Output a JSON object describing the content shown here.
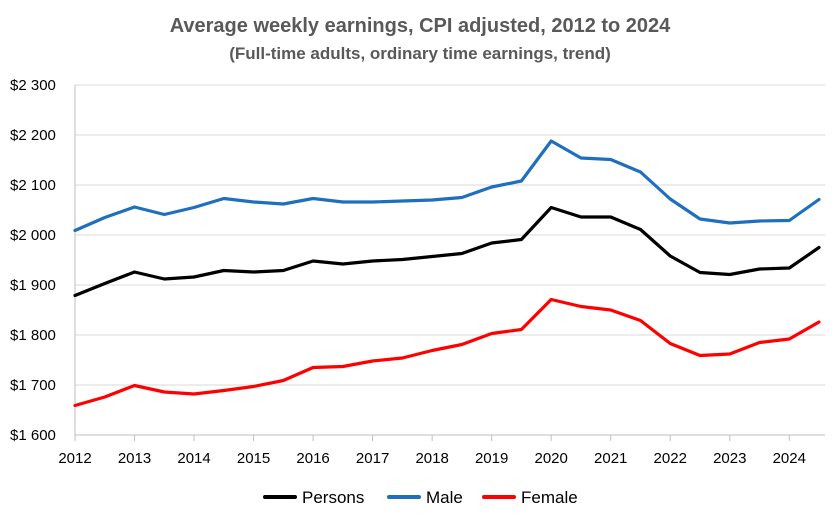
{
  "chart_data": {
    "type": "line",
    "title": "Average weekly earnings, CPI adjusted, 2012 to 2024",
    "subtitle": "(Full-time adults, ordinary time earnings, trend)",
    "xlabel": "",
    "ylabel": "",
    "ylim": [
      1600,
      2300
    ],
    "y_ticks": [
      1600,
      1700,
      1800,
      1900,
      2000,
      2100,
      2200,
      2300
    ],
    "y_tick_labels": [
      "$1 600",
      "$1 700",
      "$1 800",
      "$1 900",
      "$2 000",
      "$2 100",
      "$2 200",
      "$2 300"
    ],
    "x_tick_labels": [
      "2012",
      "2013",
      "2014",
      "2015",
      "2016",
      "2017",
      "2018",
      "2019",
      "2020",
      "2021",
      "2022",
      "2023",
      "2024"
    ],
    "x": [
      2012.0,
      2012.5,
      2013.0,
      2013.5,
      2014.0,
      2014.5,
      2015.0,
      2015.5,
      2016.0,
      2016.5,
      2017.0,
      2017.5,
      2018.0,
      2018.5,
      2019.0,
      2019.5,
      2020.0,
      2020.5,
      2021.0,
      2021.5,
      2022.0,
      2022.5,
      2023.0,
      2023.5,
      2024.0,
      2024.5
    ],
    "grid": true,
    "legend_position": "bottom",
    "series": [
      {
        "name": "Persons",
        "color": "#000000",
        "values": [
          1879,
          1903,
          1926,
          1912,
          1916,
          1929,
          1926,
          1929,
          1948,
          1942,
          1948,
          1951,
          1957,
          1963,
          1984,
          1991,
          2055,
          2036,
          2036,
          2011,
          1958,
          1925,
          1921,
          1932,
          1934,
          1975
        ]
      },
      {
        "name": "Male",
        "color": "#1f6fbf",
        "values": [
          2009,
          2035,
          2056,
          2041,
          2055,
          2073,
          2066,
          2062,
          2073,
          2066,
          2066,
          2068,
          2070,
          2075,
          2096,
          2108,
          2188,
          2154,
          2151,
          2126,
          2072,
          2032,
          2024,
          2028,
          2029,
          2071
        ]
      },
      {
        "name": "Female",
        "color": "#ff0000",
        "values": [
          1659,
          1676,
          1699,
          1686,
          1682,
          1689,
          1697,
          1709,
          1735,
          1737,
          1748,
          1754,
          1769,
          1781,
          1803,
          1811,
          1871,
          1857,
          1850,
          1829,
          1783,
          1759,
          1762,
          1785,
          1792,
          1826
        ]
      }
    ]
  }
}
